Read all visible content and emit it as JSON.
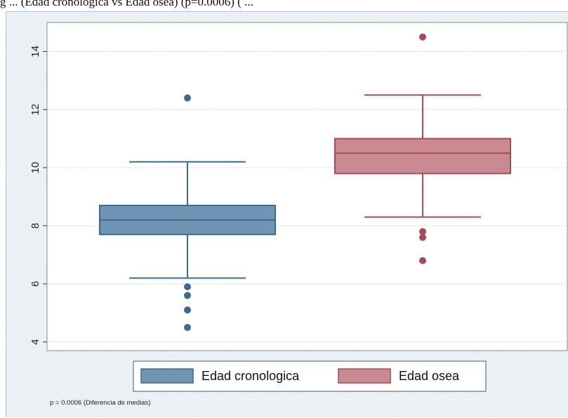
{
  "caption_fragment": "g ... (Edad cronologica vs Edad osea) (p=0.0006) ( ...",
  "chart_data": {
    "type": "box",
    "y_ticks": [
      4,
      6,
      8,
      10,
      12,
      14
    ],
    "ylim": [
      3.7,
      15.0
    ],
    "grid": true,
    "legend_position": "bottom",
    "note": "p = 0.0006 (Diferencia de medias)",
    "series": [
      {
        "name": "Edad cronologica",
        "color": "#3d6a8f",
        "fill": "#6f95b3",
        "whisker_low": 6.2,
        "q1": 7.7,
        "median": 8.2,
        "q3": 8.7,
        "whisker_high": 10.2,
        "outliers": [
          12.4,
          5.9,
          5.6,
          5.1,
          4.5
        ]
      },
      {
        "name": "Edad osea",
        "color": "#a84b55",
        "fill": "#c98a92",
        "whisker_low": 8.3,
        "q1": 9.8,
        "median": 10.5,
        "q3": 11.0,
        "whisker_high": 12.5,
        "outliers": [
          14.5,
          7.8,
          7.6,
          6.8
        ]
      }
    ]
  }
}
